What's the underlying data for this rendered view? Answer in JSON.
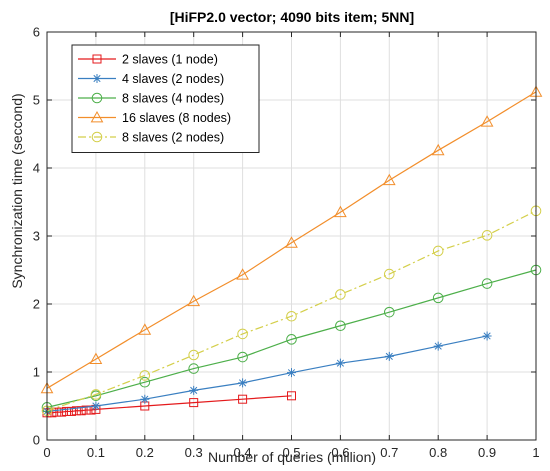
{
  "chart_data": {
    "type": "line",
    "title": "[HiFP2.0 vector; 4090 bits item; 5NN]",
    "xlabel": "Number of queries (million)",
    "ylabel": "Synchronization time (seccond)",
    "xlim": [
      0,
      1
    ],
    "ylim": [
      0,
      6
    ],
    "xticks": [
      0,
      0.1,
      0.2,
      0.3,
      0.4,
      0.5,
      0.6,
      0.7,
      0.8,
      0.9,
      1
    ],
    "xtick_labels": [
      "0",
      "0.1",
      "0.2",
      "0.3",
      "0.4",
      "0.5",
      "0.6",
      "0.7",
      "0.8",
      "0.9",
      "1"
    ],
    "yticks": [
      0,
      1,
      2,
      3,
      4,
      5,
      6
    ],
    "ytick_labels": [
      "0",
      "1",
      "2",
      "3",
      "4",
      "5",
      "6"
    ],
    "grid": true,
    "legend_position": "top-left",
    "series": [
      {
        "name": "2 slaves (1 node)",
        "color": "#e41a1c",
        "marker": "square",
        "line_style": "solid",
        "x": [
          0,
          0.01,
          0.02,
          0.03,
          0.04,
          0.05,
          0.06,
          0.07,
          0.08,
          0.09,
          0.1,
          0.2,
          0.3,
          0.4,
          0.5
        ],
        "y": [
          0.4,
          0.4,
          0.41,
          0.41,
          0.42,
          0.42,
          0.43,
          0.43,
          0.44,
          0.44,
          0.45,
          0.5,
          0.55,
          0.6,
          0.65
        ]
      },
      {
        "name": "4 slaves (2 nodes)",
        "color": "#3a7fc1",
        "marker": "star",
        "line_style": "solid",
        "x": [
          0,
          0.1,
          0.2,
          0.3,
          0.4,
          0.5,
          0.6,
          0.7,
          0.8,
          0.9
        ],
        "y": [
          0.42,
          0.5,
          0.6,
          0.73,
          0.84,
          0.99,
          1.13,
          1.23,
          1.38,
          1.53
        ]
      },
      {
        "name": "8 slaves (4 nodes)",
        "color": "#4daf4a",
        "marker": "circle",
        "line_style": "solid",
        "x": [
          0,
          0.1,
          0.2,
          0.3,
          0.4,
          0.5,
          0.6,
          0.7,
          0.8,
          0.9,
          1
        ],
        "y": [
          0.48,
          0.65,
          0.85,
          1.05,
          1.22,
          1.48,
          1.68,
          1.88,
          2.09,
          2.3,
          2.5
        ]
      },
      {
        "name": "16 slaves (8 nodes)",
        "color": "#f28e2b",
        "marker": "triangle",
        "line_style": "solid",
        "x": [
          0,
          0.1,
          0.2,
          0.3,
          0.4,
          0.5,
          0.6,
          0.7,
          0.8,
          0.9,
          1
        ],
        "y": [
          0.76,
          1.19,
          1.62,
          2.04,
          2.43,
          2.9,
          3.35,
          3.82,
          4.26,
          4.68,
          5.12
        ]
      },
      {
        "name": "8 slaves (2 nodes)",
        "color": "#d4cf4a",
        "marker": "circle",
        "line_style": "dashdot",
        "x": [
          0,
          0.1,
          0.2,
          0.3,
          0.4,
          0.5,
          0.6,
          0.7,
          0.8,
          0.9,
          1
        ],
        "y": [
          0.43,
          0.67,
          0.95,
          1.25,
          1.56,
          1.82,
          2.14,
          2.44,
          2.78,
          3.01,
          3.37
        ]
      }
    ]
  }
}
